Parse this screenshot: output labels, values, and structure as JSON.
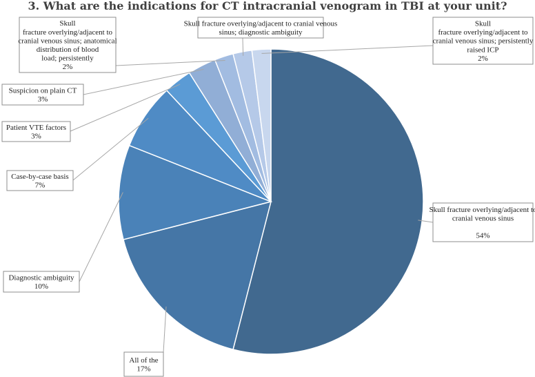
{
  "chart_data": {
    "type": "pie",
    "title": "3. What are the indications for CT intracranial venogram in TBI at your unit?",
    "slices": [
      {
        "label": "Skull fracture overlying/adjacent to cranial venous sinus",
        "value": 54,
        "value_label": "54%",
        "color": "#41698f"
      },
      {
        "label": "All of the above",
        "value": 17,
        "value_label": "17%",
        "color": "#4576a6"
      },
      {
        "label": "Diagnostic ambiguity",
        "value": 10,
        "value_label": "10%",
        "color": "#4a82b8"
      },
      {
        "label": "Case-by-case basis",
        "value": 7,
        "value_label": "7%",
        "color": "#4f8bc5"
      },
      {
        "label": "Patient VTE factors",
        "value": 3,
        "value_label": "3%",
        "color": "#5b9bd5"
      },
      {
        "label": "Suspicion on plain CT",
        "value": 3,
        "value_label": "3%",
        "color": "#91aed6"
      },
      {
        "label": "Skull fracture overlying/adjacent to cranial venous sinus; anatomical distribution of blood load; persistently raised ICP",
        "value": 2,
        "value_label": "2%",
        "color": "#a2bce1"
      },
      {
        "label": "Skull fracture overlying/adjacent to cranial venous sinus; diagnostic ambiguity",
        "value": 2,
        "value_label": "",
        "color": "#b5c9e8"
      },
      {
        "label": "Skull fracture overlying/adjacent to cranial venous sinus; persistently raised ICP",
        "value": 2,
        "value_label": "2%",
        "color": "#c8d7ee"
      }
    ]
  }
}
